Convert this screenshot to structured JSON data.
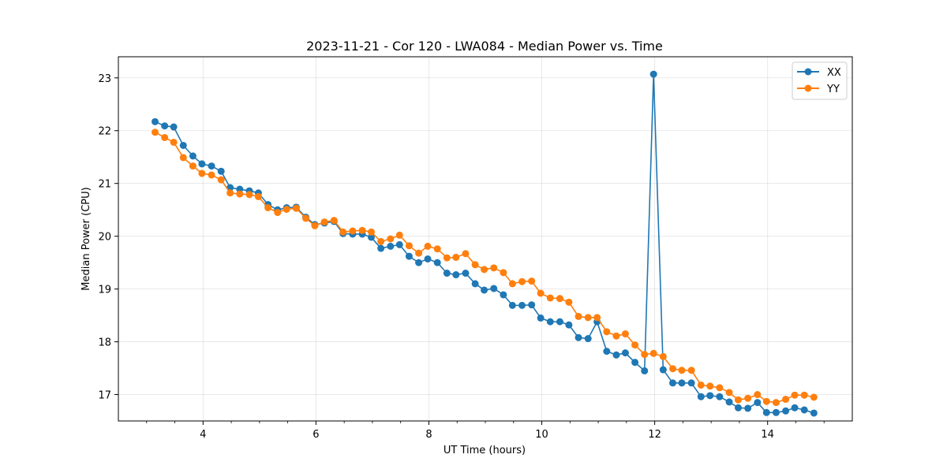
{
  "chart_data": {
    "type": "line",
    "title": "2023-11-21 - Cor 120 - LWA084 - Median Power vs. Time",
    "xlabel": "UT Time (hours)",
    "ylabel": "Median Power (CPU)",
    "xlim": [
      2.5,
      15.5
    ],
    "ylim": [
      16.5,
      23.4
    ],
    "xticks": [
      4,
      6,
      8,
      10,
      12,
      14
    ],
    "xtick_labels": [
      "4",
      "6",
      "8",
      "10",
      "12",
      "14"
    ],
    "yticks": [
      17,
      18,
      19,
      20,
      21,
      22,
      23
    ],
    "ytick_labels": [
      "17",
      "18",
      "19",
      "20",
      "21",
      "22",
      "23"
    ],
    "grid": true,
    "legend_position": "upper right",
    "x": [
      3.15,
      3.32,
      3.48,
      3.65,
      3.82,
      3.98,
      4.15,
      4.32,
      4.48,
      4.65,
      4.82,
      4.98,
      5.15,
      5.32,
      5.48,
      5.65,
      5.82,
      5.98,
      6.15,
      6.32,
      6.48,
      6.65,
      6.82,
      6.98,
      7.15,
      7.32,
      7.48,
      7.65,
      7.82,
      7.98,
      8.15,
      8.32,
      8.48,
      8.65,
      8.82,
      8.98,
      9.15,
      9.32,
      9.48,
      9.65,
      9.82,
      9.98,
      10.15,
      10.32,
      10.48,
      10.65,
      10.82,
      10.98,
      11.15,
      11.32,
      11.48,
      11.65,
      11.82,
      11.98,
      12.15,
      12.32,
      12.48,
      12.65,
      12.82,
      12.98,
      13.15,
      13.32,
      13.48,
      13.65,
      13.82,
      13.98,
      14.15,
      14.32,
      14.48,
      14.65,
      14.82
    ],
    "series": [
      {
        "name": "XX",
        "color": "#1f77b4",
        "values": [
          22.17,
          22.09,
          22.07,
          21.72,
          21.52,
          21.37,
          21.33,
          21.23,
          20.92,
          20.89,
          20.86,
          20.82,
          20.6,
          20.5,
          20.54,
          20.55,
          20.36,
          20.22,
          20.25,
          20.28,
          20.05,
          20.04,
          20.04,
          19.98,
          19.77,
          19.81,
          19.84,
          19.62,
          19.5,
          19.57,
          19.5,
          19.3,
          19.27,
          19.3,
          19.1,
          18.98,
          19.01,
          18.89,
          18.69,
          18.69,
          18.7,
          18.45,
          18.38,
          18.38,
          18.32,
          18.08,
          18.06,
          18.38,
          17.82,
          17.75,
          17.79,
          17.61,
          17.45,
          23.07,
          17.47,
          17.22,
          17.22,
          17.22,
          16.96,
          16.98,
          16.96,
          16.86,
          16.75,
          16.74,
          16.85,
          16.66,
          16.66,
          16.69,
          16.75,
          16.71,
          16.65
        ]
      },
      {
        "name": "YY",
        "color": "#ff7f0e",
        "values": [
          21.97,
          21.87,
          21.78,
          21.49,
          21.33,
          21.19,
          21.16,
          21.07,
          20.82,
          20.8,
          20.79,
          20.75,
          20.54,
          20.45,
          20.51,
          20.53,
          20.34,
          20.2,
          20.27,
          20.3,
          20.08,
          20.1,
          20.11,
          20.08,
          19.9,
          19.95,
          20.02,
          19.82,
          19.68,
          19.81,
          19.76,
          19.59,
          19.6,
          19.67,
          19.46,
          19.37,
          19.4,
          19.31,
          19.1,
          19.14,
          19.15,
          18.92,
          18.83,
          18.82,
          18.75,
          18.48,
          18.46,
          18.46,
          18.19,
          18.11,
          18.15,
          17.94,
          17.76,
          17.78,
          17.72,
          17.49,
          17.46,
          17.46,
          17.18,
          17.16,
          17.13,
          17.04,
          16.9,
          16.93,
          17.0,
          16.87,
          16.85,
          16.91,
          16.99,
          16.99,
          16.95
        ]
      }
    ]
  }
}
